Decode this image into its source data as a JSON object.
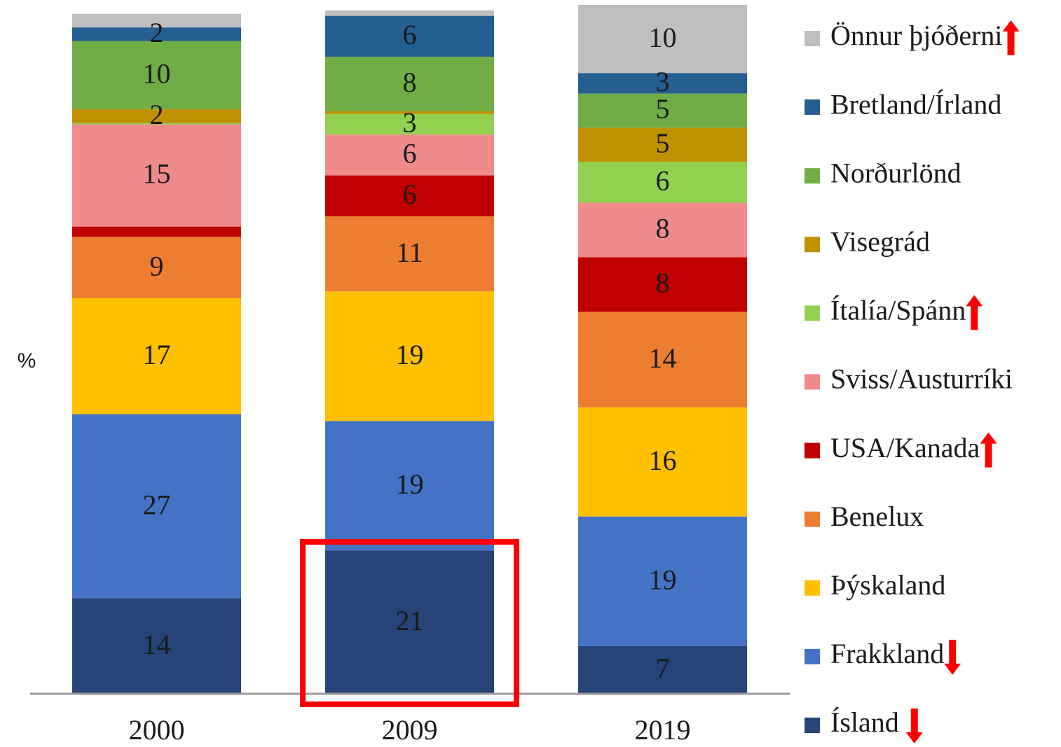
{
  "chart_data": {
    "type": "stacked_bar",
    "y_label": "%",
    "categories": [
      "2000",
      "2009",
      "2019"
    ],
    "ylim": [
      0,
      101
    ],
    "series": [
      {
        "name": "Ísland",
        "color": "#264478",
        "values": [
          14,
          21,
          7
        ],
        "value_labels": [
          "14",
          "21",
          "7"
        ],
        "trend": "down"
      },
      {
        "name": "Frakkland",
        "color": "#4472c4",
        "values": [
          27,
          19,
          19
        ],
        "value_labels": [
          "27",
          "19",
          "19"
        ],
        "trend": "down"
      },
      {
        "name": "Þýskaland",
        "color": "#ffc000",
        "values": [
          17,
          19,
          16
        ],
        "value_labels": [
          "17",
          "19",
          "16"
        ]
      },
      {
        "name": "Benelux",
        "color": "#ed7d31",
        "values": [
          9,
          11,
          14
        ],
        "value_labels": [
          "9",
          "11",
          "14"
        ]
      },
      {
        "name": "USA/Kanada",
        "color": "#c00000",
        "values": [
          1.5,
          6,
          8
        ],
        "value_labels": [
          null,
          "6",
          "8"
        ],
        "trend": "up"
      },
      {
        "name": "Sviss/Austurríki",
        "color": "#ef8b8b",
        "values": [
          15,
          6,
          8
        ],
        "value_labels": [
          "15",
          "6",
          "8"
        ]
      },
      {
        "name": "Ítalía/Spánn",
        "color": "#92d050",
        "values": [
          0.2,
          3,
          6
        ],
        "value_labels": [
          null,
          "3",
          "6"
        ],
        "trend": "up"
      },
      {
        "name": "Visegrád",
        "color": "#bf9000",
        "values": [
          2,
          0.4,
          5
        ],
        "value_labels": [
          "2",
          null,
          "5"
        ]
      },
      {
        "name": "Norðurlönd",
        "color": "#70ad47",
        "values": [
          10,
          8,
          5
        ],
        "value_labels": [
          "10",
          "8",
          "5"
        ]
      },
      {
        "name": "Bretland/Írland",
        "color": "#255e91",
        "values": [
          2,
          6,
          3
        ],
        "value_labels": [
          "2",
          "6",
          "3"
        ]
      },
      {
        "name": "Önnur þjóðerni",
        "color": "#bfbfbf",
        "values": [
          2,
          0.8,
          10
        ],
        "value_labels": [
          null,
          null,
          "10"
        ],
        "trend": "up"
      }
    ]
  }
}
